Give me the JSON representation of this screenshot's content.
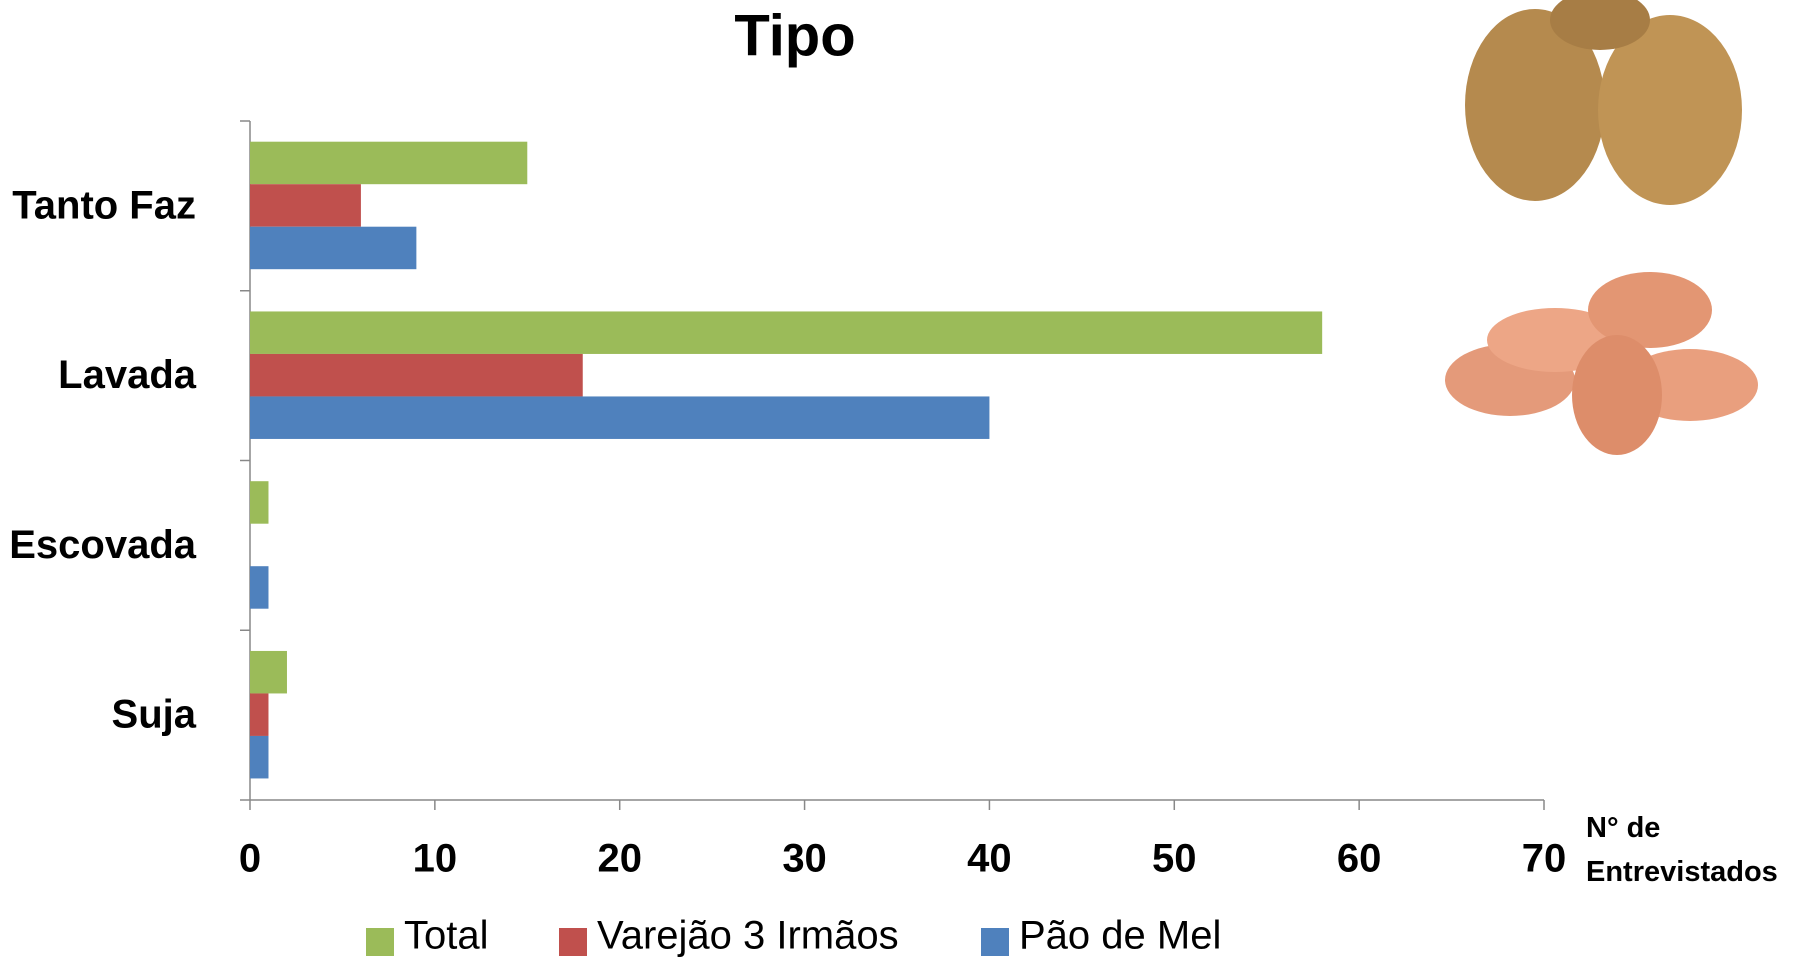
{
  "chart_data": {
    "type": "hbar",
    "title": "Tipo",
    "categories": [
      "Tanto Faz",
      "Lavada",
      "Escovada",
      "Suja"
    ],
    "series": [
      {
        "name": "Total",
        "color": "#9bbb59",
        "values": [
          15,
          58,
          1,
          2
        ]
      },
      {
        "name": "Varejão 3 Irmãos",
        "color": "#c0504d",
        "values": [
          6,
          18,
          0,
          1
        ]
      },
      {
        "name": "Pão de Mel",
        "color": "#4f81bd",
        "values": [
          9,
          40,
          1,
          1
        ]
      }
    ],
    "x_label": "N° de Entrevistados",
    "xlim": [
      0,
      70
    ],
    "xticks": [
      0,
      10,
      20,
      30,
      40,
      50,
      60,
      70
    ],
    "grid": false,
    "legend": "bottom"
  }
}
